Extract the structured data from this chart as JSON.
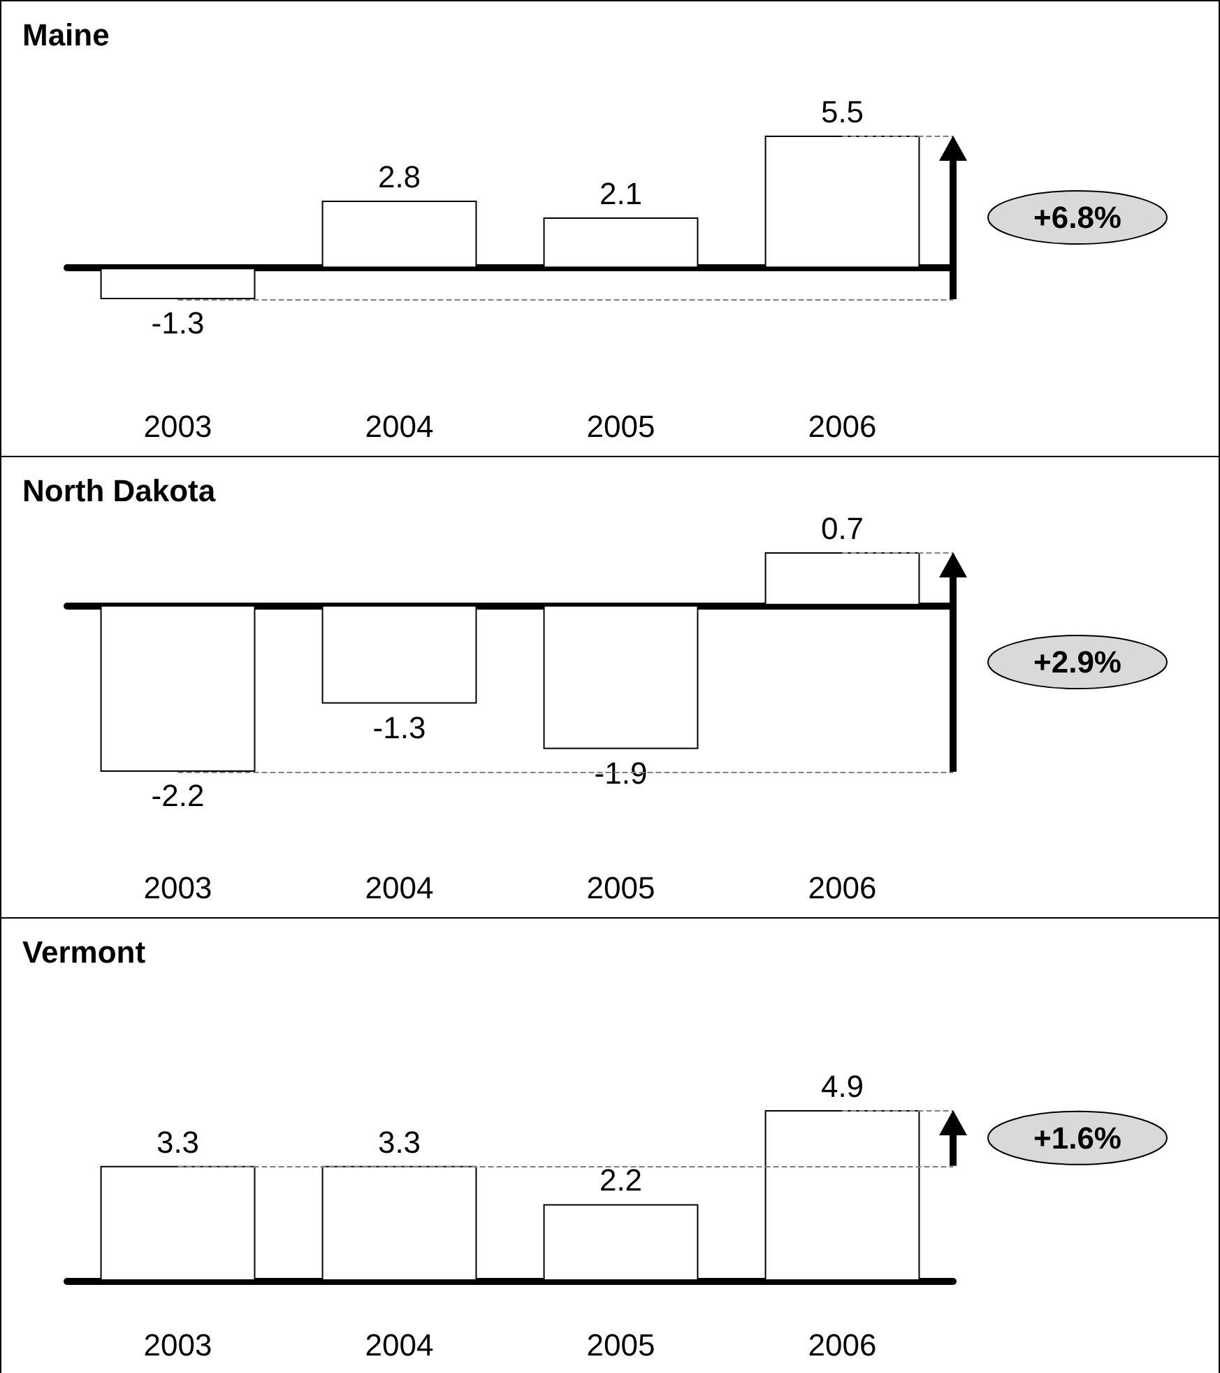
{
  "chart_data": [
    {
      "type": "bar",
      "title": "Maine",
      "categories": [
        "2003",
        "2004",
        "2005",
        "2006"
      ],
      "values": [
        -1.3,
        2.8,
        2.1,
        5.5
      ],
      "color": "#ffffff",
      "data_labels": true,
      "annotations": [
        "+6.8%"
      ],
      "ref_lines": [
        {
          "axis": "y",
          "value": -1.3,
          "line_style": "dashed",
          "color": "#808080"
        },
        {
          "axis": "y",
          "value": 5.5,
          "line_style": "dashed",
          "color": "#808080"
        }
      ]
    },
    {
      "type": "bar",
      "title": "North Dakota",
      "categories": [
        "2003",
        "2004",
        "2005",
        "2006"
      ],
      "values": [
        -2.2,
        -1.3,
        -1.9,
        0.7
      ],
      "color": "#ffffff",
      "data_labels": true,
      "annotations": [
        "+2.9%"
      ],
      "ref_lines": [
        {
          "axis": "y",
          "value": -2.2,
          "line_style": "dashed",
          "color": "#808080"
        },
        {
          "axis": "y",
          "value": 0.7,
          "line_style": "dashed",
          "color": "#808080"
        }
      ]
    },
    {
      "type": "bar",
      "title": "Vermont",
      "categories": [
        "2003",
        "2004",
        "2005",
        "2006"
      ],
      "values": [
        3.3,
        3.3,
        2.2,
        4.9
      ],
      "color": "#ffffff",
      "data_labels": true,
      "annotations": [
        "+1.6%"
      ],
      "ref_lines": [
        {
          "axis": "y",
          "value": 3.3,
          "line_style": "dashed",
          "color": "#808080"
        },
        {
          "axis": "y",
          "value": 4.9,
          "line_style": "dashed",
          "color": "#808080"
        }
      ]
    }
  ]
}
